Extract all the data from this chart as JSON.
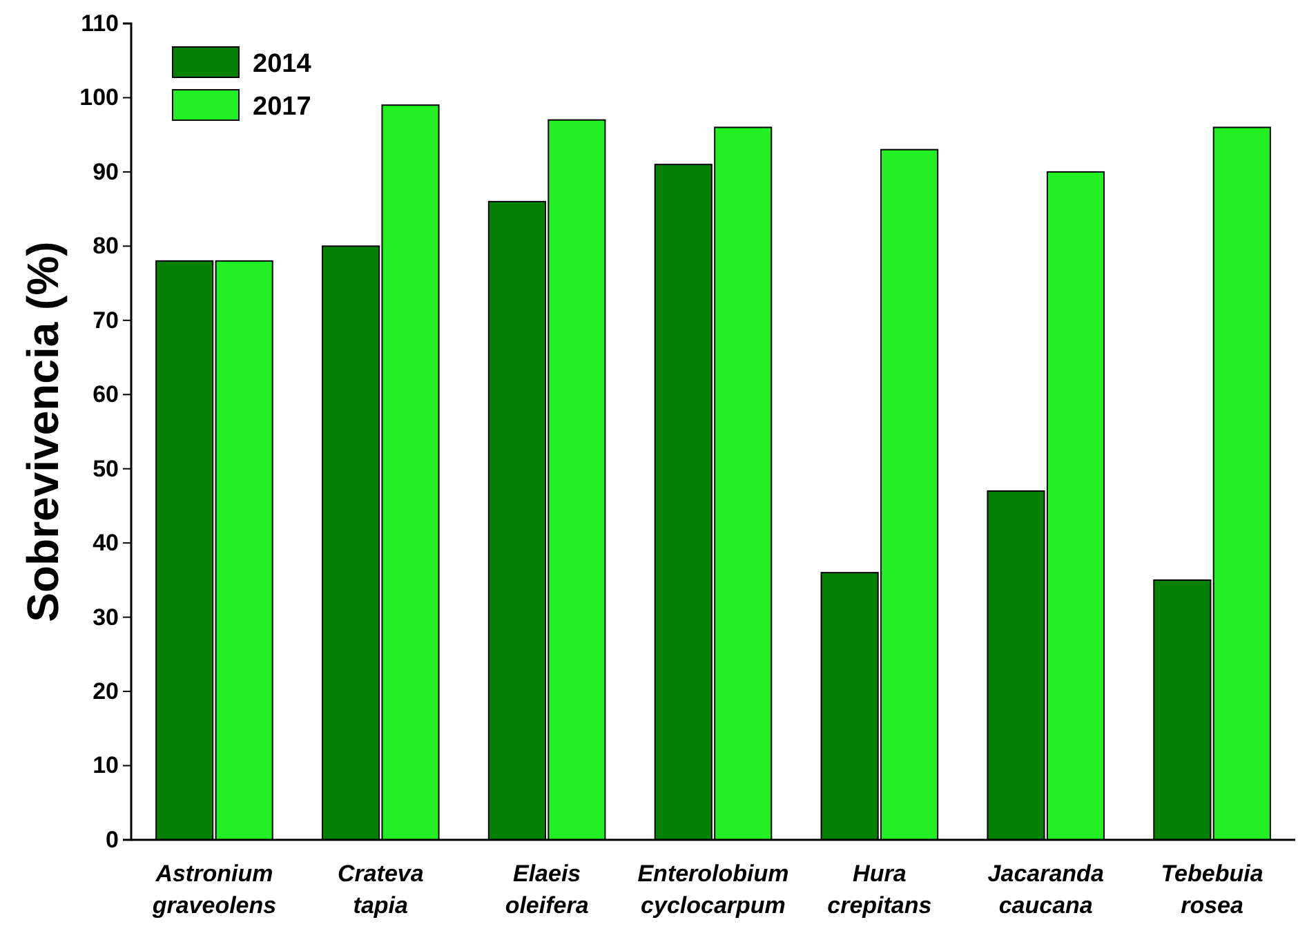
{
  "chart_data": {
    "type": "bar",
    "ylabel": "Sobrevivencia (%)",
    "categories": [
      "Astronium graveolens",
      "Crateva tapia",
      "Elaeis oleifera",
      "Enterolobium cyclocarpum",
      "Hura crepitans",
      "Jacaranda caucana",
      "Tebebuia rosea"
    ],
    "series": [
      {
        "name": "2014",
        "color": "#058205",
        "values": [
          78,
          80,
          86,
          91,
          36,
          47,
          35
        ]
      },
      {
        "name": "2017",
        "color": "#22f022",
        "values": [
          78,
          99,
          97,
          96,
          93,
          90,
          96
        ]
      }
    ],
    "ylim": [
      0,
      110
    ],
    "yticks": [
      0,
      10,
      20,
      30,
      40,
      50,
      60,
      70,
      80,
      90,
      100,
      110
    ],
    "grid": false,
    "legend": "top left"
  }
}
